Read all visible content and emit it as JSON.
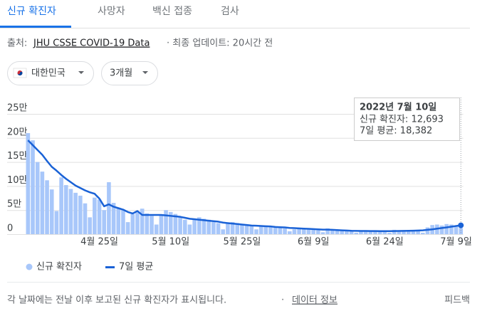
{
  "tabs": [
    "신규 확진자",
    "사망자",
    "백신 접종",
    "검사"
  ],
  "source": {
    "prefix": "출처:",
    "link": "JHU CSSE COVID-19 Data",
    "suffix": "· 최종 업데이트: 20시간 전"
  },
  "filters": [
    "대한민국",
    "3개월"
  ],
  "footer": {
    "note": "각 날짜에는 전날 이후 보고된 신규 확진자가 표시됩니다.",
    "link": "데이터 정보",
    "feedback": "피드백"
  },
  "chart_data": {
    "type": "bar",
    "categories": [
      null,
      null,
      null,
      null,
      null,
      null,
      null,
      null,
      null,
      null,
      null,
      null,
      null,
      null,
      null,
      "4월 25일",
      null,
      null,
      null,
      null,
      null,
      null,
      null,
      null,
      null,
      null,
      null,
      null,
      null,
      null,
      "5월 10일",
      null,
      null,
      null,
      null,
      null,
      null,
      null,
      null,
      null,
      null,
      null,
      null,
      null,
      null,
      "5월 25일",
      null,
      null,
      null,
      null,
      null,
      null,
      null,
      null,
      null,
      null,
      null,
      null,
      null,
      null,
      "6월 9일",
      null,
      null,
      null,
      null,
      null,
      null,
      null,
      null,
      null,
      null,
      null,
      null,
      null,
      null,
      "6월 24일",
      null,
      null,
      null,
      null,
      null,
      null,
      null,
      null,
      null,
      null,
      null,
      null,
      null,
      null,
      "7월 9일",
      null
    ],
    "series": [
      {
        "name": "신규 확진자",
        "type": "bar",
        "color": "#a8c7fa",
        "values": [
          210000,
          195000,
          150000,
          130000,
          112000,
          93000,
          48000,
          118000,
          102000,
          94000,
          86000,
          80000,
          64000,
          35000,
          76000,
          72000,
          50000,
          108000,
          65000,
          55000,
          50000,
          25000,
          42000,
          45000,
          53000,
          43000,
          38000,
          20000,
          40000,
          50000,
          46000,
          42000,
          35000,
          30000,
          20000,
          30000,
          35000,
          32000,
          30000,
          25000,
          23000,
          10000,
          22000,
          25000,
          23000,
          20000,
          18000,
          17000,
          10000,
          16000,
          18000,
          16000,
          14000,
          13000,
          12000,
          6000,
          10000,
          13000,
          12000,
          10000,
          9000,
          8000,
          4000,
          12000,
          9000,
          8000,
          7000,
          7000,
          6000,
          3000,
          7000,
          7000,
          7000,
          6000,
          6000,
          5000,
          3000,
          9000,
          8000,
          7000,
          7000,
          7000,
          6000,
          3000,
          14000,
          19000,
          20000,
          18000,
          21000,
          20000,
          17000,
          12693
        ]
      },
      {
        "name": "7일 평균",
        "type": "line",
        "color": "#1a62d6",
        "values": [
          195000,
          185000,
          175000,
          165000,
          152000,
          140000,
          132000,
          123000,
          115000,
          108000,
          101000,
          96000,
          91000,
          87000,
          84000,
          74000,
          58000,
          62000,
          57000,
          54000,
          51000,
          46000,
          43000,
          48000,
          40000,
          40000,
          40000,
          40000,
          40000,
          39000,
          38000,
          37000,
          36000,
          34000,
          32000,
          31000,
          30000,
          29000,
          28000,
          27000,
          26000,
          24000,
          23000,
          22000,
          21000,
          20000,
          19000,
          18000,
          17500,
          17000,
          16500,
          16000,
          15000,
          14500,
          14000,
          13000,
          12500,
          12000,
          11500,
          11000,
          10500,
          10000,
          9500,
          9500,
          9000,
          8500,
          8000,
          7500,
          7000,
          6800,
          6700,
          6600,
          6500,
          6400,
          6300,
          6200,
          6200,
          6400,
          6600,
          6800,
          7000,
          7300,
          7600,
          8000,
          9000,
          10000,
          11500,
          12800,
          14000,
          15500,
          17000,
          18382
        ]
      }
    ],
    "ylim": [
      0,
      250000
    ],
    "yticks": [
      0,
      {
        "value": 50000,
        "label": "5만"
      },
      {
        "value": 100000,
        "label": "10만"
      },
      {
        "value": 150000,
        "label": "15만"
      },
      {
        "value": 200000,
        "label": "20만"
      },
      {
        "value": 250000,
        "label": "25만"
      }
    ],
    "grid": true,
    "tooltip": {
      "date": "2022년 7월 10일",
      "lines": [
        "신규 확진자: 12,693",
        "7일 평균: 18,382"
      ]
    }
  }
}
